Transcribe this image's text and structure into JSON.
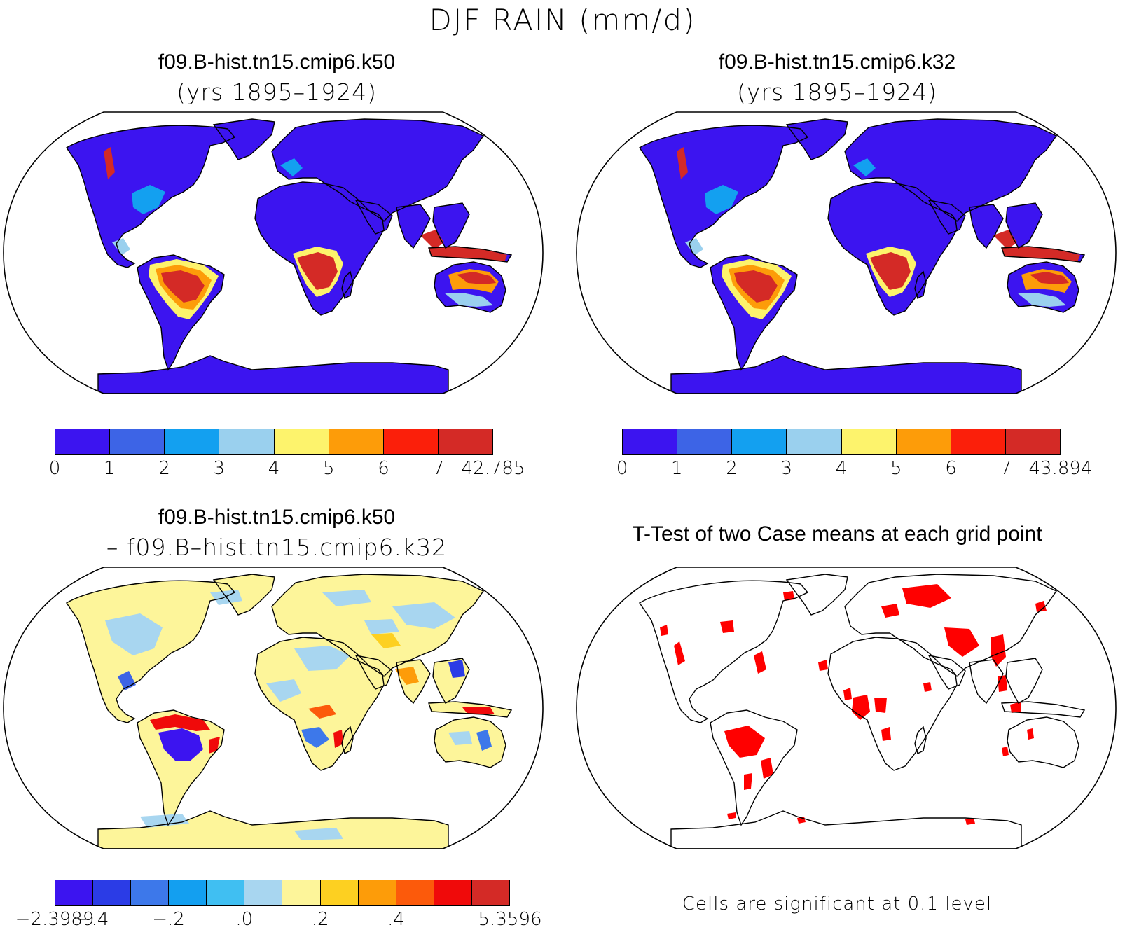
{
  "figure": {
    "title": "DJF RAIN (mm/d)"
  },
  "panels": [
    {
      "title": "f09.B-hist.tn15.cmip6.k50",
      "subtitle": "(yrs 1895–1924)",
      "colorbar": {
        "colors": [
          "#3c14f0",
          "#3d64e6",
          "#13a0f0",
          "#9ad0ee",
          "#fdf36c",
          "#fd9c09",
          "#fb1f0a",
          "#d42a26"
        ],
        "ticks": [
          "0",
          "1",
          "2",
          "3",
          "4",
          "5",
          "6",
          "7",
          "42.785"
        ]
      }
    },
    {
      "title": "f09.B-hist.tn15.cmip6.k32",
      "subtitle": "(yrs 1895–1924)",
      "colorbar": {
        "colors": [
          "#3c14f0",
          "#3d64e6",
          "#13a0f0",
          "#9ad0ee",
          "#fdf36c",
          "#fd9c09",
          "#fb1f0a",
          "#d42a26"
        ],
        "ticks": [
          "0",
          "1",
          "2",
          "3",
          "4",
          "5",
          "6",
          "7",
          "43.894"
        ]
      }
    },
    {
      "title": "f09.B-hist.tn15.cmip6.k50",
      "subtitle": "– f09.B–hist.tn15.cmip6.k32",
      "colorbar": {
        "colors": [
          "#3c14f0",
          "#2b3ce6",
          "#3d78ea",
          "#139ff0",
          "#40bff2",
          "#a8d6f0",
          "#fdf59a",
          "#fdd021",
          "#fd9c09",
          "#fc5a0b",
          "#f00a0a",
          "#d42a26"
        ],
        "ticks": [
          "−2.3989",
          "−.4",
          "",
          "−.2",
          "",
          ".0",
          "",
          ".2",
          "",
          ".4",
          "",
          "",
          "5.3596"
        ]
      }
    },
    {
      "title": "T-Test of two Case means at each grid point",
      "note": "Cells are significant at 0.1 level"
    }
  ],
  "colors": {
    "land_dry": "#3c14f0",
    "wet": "#d42a26",
    "significant": "#ff0000",
    "diff_base": "#fdf59a",
    "diff_neg": "#a8d6f0"
  }
}
